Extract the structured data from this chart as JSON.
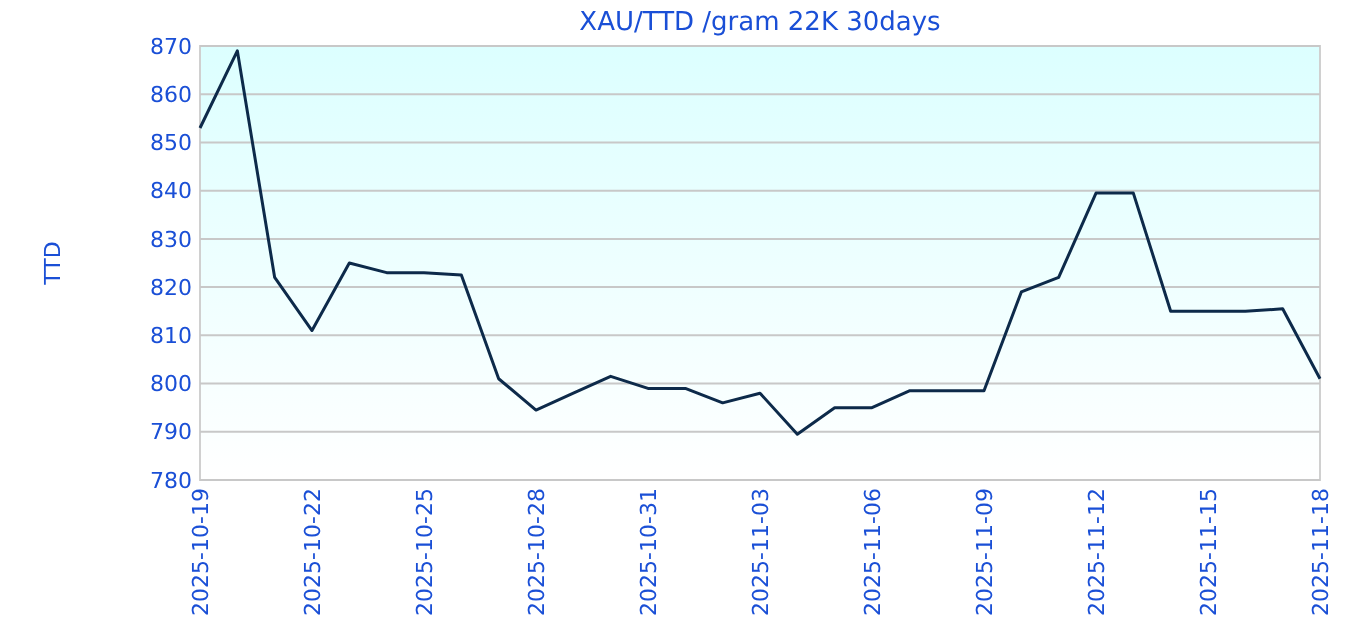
{
  "chart_data": {
    "type": "line",
    "title": "XAU/TTD /gram 22K 30days",
    "ylabel": "TTD",
    "x": [
      "2025-10-19",
      "2025-10-20",
      "2025-10-21",
      "2025-10-22",
      "2025-10-23",
      "2025-10-24",
      "2025-10-25",
      "2025-10-26",
      "2025-10-27",
      "2025-10-28",
      "2025-10-29",
      "2025-10-30",
      "2025-10-31",
      "2025-11-01",
      "2025-11-02",
      "2025-11-03",
      "2025-11-04",
      "2025-11-05",
      "2025-11-06",
      "2025-11-07",
      "2025-11-08",
      "2025-11-09",
      "2025-11-10",
      "2025-11-11",
      "2025-11-12",
      "2025-11-13",
      "2025-11-14",
      "2025-11-15",
      "2025-11-16",
      "2025-11-17",
      "2025-11-18"
    ],
    "series": [
      {
        "color": "#0d2a4a",
        "values": [
          853,
          869,
          822,
          811,
          825,
          823,
          823,
          822.5,
          801,
          794.5,
          798,
          801.5,
          799,
          799,
          796,
          798,
          789.5,
          795,
          795,
          798.5,
          798.5,
          798.5,
          819,
          822,
          839.5,
          839.5,
          815,
          815,
          815,
          815.5,
          801
        ]
      }
    ],
    "xlim": [
      "2025-10-19",
      "2025-11-18"
    ],
    "xticks": [
      "2025-10-19",
      "2025-10-22",
      "2025-10-25",
      "2025-10-28",
      "2025-10-31",
      "2025-11-03",
      "2025-11-06",
      "2025-11-09",
      "2025-11-12",
      "2025-11-15",
      "2025-11-18"
    ],
    "ylim": [
      780,
      870
    ],
    "yticks": [
      780,
      790,
      800,
      810,
      820,
      830,
      840,
      850,
      860,
      870
    ],
    "grid": "y",
    "marker": "none",
    "line_style": "solid"
  }
}
